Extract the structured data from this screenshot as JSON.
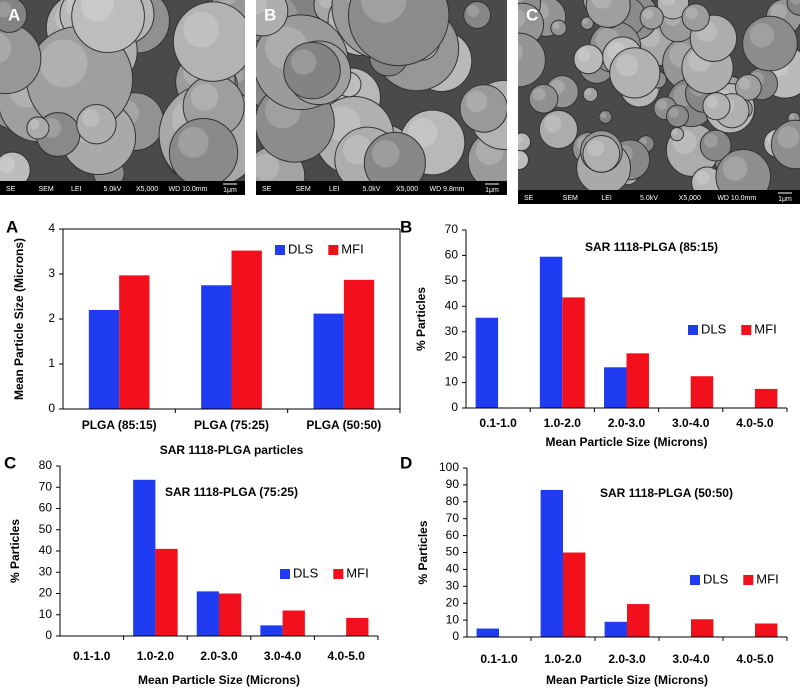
{
  "micrographs": [
    {
      "label": "A",
      "info": [
        "SE",
        "SEM",
        "LEI",
        "5.0kV",
        "X5,000",
        "WD 10.0mm"
      ],
      "scale": "1μm"
    },
    {
      "label": "B",
      "info": [
        "SE",
        "SEM",
        "LEI",
        "5.0kV",
        "X5,000",
        "WD 9.8mm"
      ],
      "scale": "1μm"
    },
    {
      "label": "C",
      "info": [
        "SE",
        "SEM",
        "LEI",
        "5.0kV",
        "X5,000",
        "WD 10.0mm"
      ],
      "scale": "1μm"
    }
  ],
  "chart_data": [
    {
      "type": "bar",
      "panel_label": "A",
      "y_label": "Mean Particle Size (Microns)",
      "x_label": "SAR 1118-PLGA particles",
      "categories": [
        "PLGA (85:15)",
        "PLGA (75:25)",
        "PLGA (50:50)"
      ],
      "series": [
        {
          "name": "DLS",
          "color": "#1f3cf2",
          "values": [
            2.2,
            2.75,
            2.12
          ]
        },
        {
          "name": "MFI",
          "color": "#f2101c",
          "values": [
            2.97,
            3.52,
            2.87
          ]
        }
      ],
      "ylim": [
        0,
        4
      ],
      "yticks": [
        0,
        1,
        2,
        3,
        4
      ]
    },
    {
      "type": "bar",
      "panel_label": "B",
      "title": "SAR 1118-PLGA (85:15)",
      "y_label": "% Particles",
      "x_label": "Mean Particle  Size (Microns)",
      "categories": [
        "0.1-1.0",
        "1.0-2.0",
        "2.0-3.0",
        "3.0-4.0",
        "4.0-5.0"
      ],
      "series": [
        {
          "name": "DLS",
          "color": "#1f3cf2",
          "values": [
            35.5,
            59.5,
            16,
            0,
            0
          ]
        },
        {
          "name": "MFI",
          "color": "#f2101c",
          "values": [
            0,
            43.5,
            21.5,
            12.5,
            7.5
          ]
        }
      ],
      "ylim": [
        0,
        70
      ],
      "yticks": [
        0,
        10,
        20,
        30,
        40,
        50,
        60,
        70
      ]
    },
    {
      "type": "bar",
      "panel_label": "C",
      "title": "SAR 1118-PLGA (75:25)",
      "y_label": "% Particles",
      "x_label": "Mean Particle  Size (Microns)",
      "categories": [
        "0.1-1.0",
        "1.0-2.0",
        "2.0-3.0",
        "3.0-4.0",
        "4.0-5.0"
      ],
      "series": [
        {
          "name": "DLS",
          "color": "#1f3cf2",
          "values": [
            0,
            73.5,
            21,
            5,
            0
          ]
        },
        {
          "name": "MFI",
          "color": "#f2101c",
          "values": [
            0,
            41,
            20,
            12,
            8.5
          ]
        }
      ],
      "ylim": [
        0,
        80
      ],
      "yticks": [
        0,
        10,
        20,
        30,
        40,
        50,
        60,
        70,
        80
      ]
    },
    {
      "type": "bar",
      "panel_label": "D",
      "title": "SAR 1118-PLGA (50:50)",
      "y_label": "% Particles",
      "x_label": "Mean Particle  Size (Microns)",
      "categories": [
        "0.1-1.0",
        "1.0-2.0",
        "2.0-3.0",
        "3.0-4.0",
        "4.0-5.0"
      ],
      "series": [
        {
          "name": "DLS",
          "color": "#1f3cf2",
          "values": [
            5,
            87,
            9,
            0,
            0
          ]
        },
        {
          "name": "MFI",
          "color": "#f2101c",
          "values": [
            0,
            50,
            19.5,
            10.5,
            8
          ]
        }
      ],
      "ylim": [
        0,
        100
      ],
      "yticks": [
        0,
        10,
        20,
        30,
        40,
        50,
        60,
        70,
        80,
        90,
        100
      ]
    }
  ]
}
